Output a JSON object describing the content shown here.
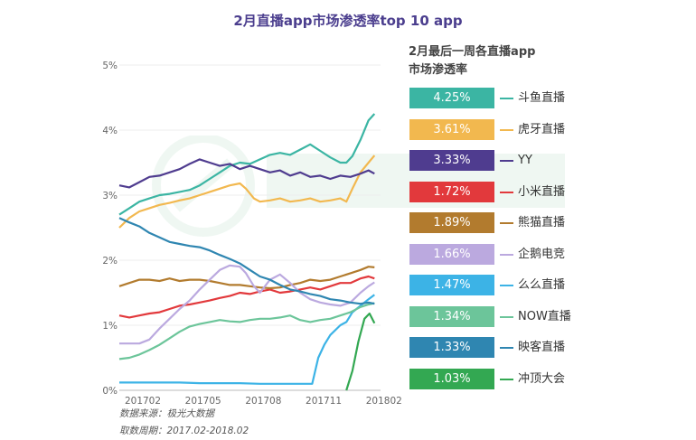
{
  "title": "2月直播app市场渗透率top 10 app",
  "legend_title": [
    "2月最后一周各直播app",
    "市场渗透率"
  ],
  "source": {
    "line1": "数据来源：极光大数据",
    "line2": "取数周期：2017.02-2018.02"
  },
  "chart_data": {
    "type": "line",
    "title": "2月直播app市场渗透率top 10 app",
    "xlabel": "",
    "ylabel": "",
    "ylim": [
      0,
      5
    ],
    "yticks": [
      "0%",
      "1%",
      "2%",
      "3%",
      "4%",
      "5%"
    ],
    "x_tick_labels": [
      "201702",
      "201705",
      "201708",
      "201711",
      "201802"
    ],
    "x_tick_positions": [
      0,
      3,
      6,
      9,
      12
    ],
    "x_range": [
      0,
      13
    ],
    "series": [
      {
        "name": "斗鱼直播",
        "value": "4.25%",
        "color": "#3bb5a3",
        "points": [
          [
            0,
            2.7
          ],
          [
            0.5,
            2.8
          ],
          [
            1,
            2.9
          ],
          [
            1.5,
            2.95
          ],
          [
            2,
            3.0
          ],
          [
            2.5,
            3.02
          ],
          [
            3,
            3.05
          ],
          [
            3.5,
            3.08
          ],
          [
            4,
            3.15
          ],
          [
            4.5,
            3.25
          ],
          [
            5,
            3.35
          ],
          [
            5.5,
            3.45
          ],
          [
            6,
            3.5
          ],
          [
            6.5,
            3.48
          ],
          [
            7,
            3.55
          ],
          [
            7.5,
            3.62
          ],
          [
            8,
            3.65
          ],
          [
            8.5,
            3.62
          ],
          [
            9,
            3.7
          ],
          [
            9.5,
            3.78
          ],
          [
            10,
            3.68
          ],
          [
            10.5,
            3.58
          ],
          [
            11,
            3.5
          ],
          [
            11.3,
            3.5
          ],
          [
            11.6,
            3.6
          ],
          [
            12,
            3.85
          ],
          [
            12.4,
            4.15
          ],
          [
            12.7,
            4.25
          ]
        ]
      },
      {
        "name": "虎牙直播",
        "value": "3.61%",
        "color": "#f2b84f",
        "points": [
          [
            0,
            2.5
          ],
          [
            0.5,
            2.65
          ],
          [
            1,
            2.75
          ],
          [
            1.5,
            2.8
          ],
          [
            2,
            2.85
          ],
          [
            2.5,
            2.88
          ],
          [
            3,
            2.92
          ],
          [
            3.5,
            2.95
          ],
          [
            4,
            3.0
          ],
          [
            4.5,
            3.05
          ],
          [
            5,
            3.1
          ],
          [
            5.5,
            3.15
          ],
          [
            6,
            3.18
          ],
          [
            6.3,
            3.1
          ],
          [
            6.7,
            2.95
          ],
          [
            7,
            2.9
          ],
          [
            7.5,
            2.92
          ],
          [
            8,
            2.95
          ],
          [
            8.5,
            2.9
          ],
          [
            9,
            2.92
          ],
          [
            9.5,
            2.95
          ],
          [
            10,
            2.9
          ],
          [
            10.5,
            2.92
          ],
          [
            11,
            2.95
          ],
          [
            11.3,
            2.9
          ],
          [
            11.6,
            3.1
          ],
          [
            12,
            3.35
          ],
          [
            12.4,
            3.5
          ],
          [
            12.7,
            3.61
          ]
        ]
      },
      {
        "name": "YY",
        "value": "3.33%",
        "color": "#4f3c8f",
        "points": [
          [
            0,
            3.15
          ],
          [
            0.5,
            3.12
          ],
          [
            1,
            3.2
          ],
          [
            1.5,
            3.28
          ],
          [
            2,
            3.3
          ],
          [
            2.5,
            3.35
          ],
          [
            3,
            3.4
          ],
          [
            3.5,
            3.48
          ],
          [
            4,
            3.55
          ],
          [
            4.5,
            3.5
          ],
          [
            5,
            3.45
          ],
          [
            5.5,
            3.48
          ],
          [
            6,
            3.4
          ],
          [
            6.5,
            3.45
          ],
          [
            7,
            3.4
          ],
          [
            7.5,
            3.35
          ],
          [
            8,
            3.38
          ],
          [
            8.5,
            3.3
          ],
          [
            9,
            3.35
          ],
          [
            9.5,
            3.28
          ],
          [
            10,
            3.3
          ],
          [
            10.5,
            3.25
          ],
          [
            11,
            3.3
          ],
          [
            11.5,
            3.28
          ],
          [
            12,
            3.33
          ],
          [
            12.4,
            3.38
          ],
          [
            12.7,
            3.33
          ]
        ]
      },
      {
        "name": "小米直播",
        "value": "1.72%",
        "color": "#e2393c",
        "points": [
          [
            0,
            1.15
          ],
          [
            0.5,
            1.12
          ],
          [
            1,
            1.15
          ],
          [
            1.5,
            1.18
          ],
          [
            2,
            1.2
          ],
          [
            2.5,
            1.25
          ],
          [
            3,
            1.3
          ],
          [
            3.5,
            1.32
          ],
          [
            4,
            1.35
          ],
          [
            4.5,
            1.38
          ],
          [
            5,
            1.42
          ],
          [
            5.5,
            1.45
          ],
          [
            6,
            1.5
          ],
          [
            6.5,
            1.48
          ],
          [
            7,
            1.52
          ],
          [
            7.5,
            1.55
          ],
          [
            8,
            1.5
          ],
          [
            8.5,
            1.52
          ],
          [
            9,
            1.55
          ],
          [
            9.5,
            1.58
          ],
          [
            10,
            1.55
          ],
          [
            10.5,
            1.6
          ],
          [
            11,
            1.65
          ],
          [
            11.5,
            1.65
          ],
          [
            12,
            1.72
          ],
          [
            12.4,
            1.75
          ],
          [
            12.7,
            1.72
          ]
        ]
      },
      {
        "name": "熊猫直播",
        "value": "1.89%",
        "color": "#b27b2e",
        "points": [
          [
            0,
            1.6
          ],
          [
            0.5,
            1.65
          ],
          [
            1,
            1.7
          ],
          [
            1.5,
            1.7
          ],
          [
            2,
            1.68
          ],
          [
            2.5,
            1.72
          ],
          [
            3,
            1.68
          ],
          [
            3.5,
            1.7
          ],
          [
            4,
            1.7
          ],
          [
            4.5,
            1.68
          ],
          [
            5,
            1.65
          ],
          [
            5.5,
            1.62
          ],
          [
            6,
            1.62
          ],
          [
            6.5,
            1.6
          ],
          [
            7,
            1.58
          ],
          [
            7.5,
            1.57
          ],
          [
            8,
            1.58
          ],
          [
            8.5,
            1.62
          ],
          [
            9,
            1.65
          ],
          [
            9.5,
            1.7
          ],
          [
            10,
            1.68
          ],
          [
            10.5,
            1.7
          ],
          [
            11,
            1.75
          ],
          [
            11.5,
            1.8
          ],
          [
            12,
            1.85
          ],
          [
            12.4,
            1.9
          ],
          [
            12.7,
            1.89
          ]
        ]
      },
      {
        "name": "企鹅电竞",
        "value": "1.66%",
        "color": "#bba9df",
        "points": [
          [
            0,
            0.72
          ],
          [
            0.5,
            0.72
          ],
          [
            1,
            0.72
          ],
          [
            1.5,
            0.78
          ],
          [
            2,
            0.95
          ],
          [
            2.5,
            1.1
          ],
          [
            3,
            1.25
          ],
          [
            3.5,
            1.38
          ],
          [
            4,
            1.55
          ],
          [
            4.5,
            1.7
          ],
          [
            5,
            1.85
          ],
          [
            5.5,
            1.92
          ],
          [
            6,
            1.9
          ],
          [
            6.3,
            1.8
          ],
          [
            6.7,
            1.6
          ],
          [
            7,
            1.5
          ],
          [
            7.5,
            1.7
          ],
          [
            8,
            1.78
          ],
          [
            8.5,
            1.65
          ],
          [
            9,
            1.5
          ],
          [
            9.5,
            1.4
          ],
          [
            10,
            1.35
          ],
          [
            10.5,
            1.32
          ],
          [
            11,
            1.3
          ],
          [
            11.5,
            1.35
          ],
          [
            12,
            1.5
          ],
          [
            12.4,
            1.6
          ],
          [
            12.7,
            1.66
          ]
        ]
      },
      {
        "name": "么么直播",
        "value": "1.47%",
        "color": "#3cb3e6",
        "points": [
          [
            0,
            0.12
          ],
          [
            1,
            0.12
          ],
          [
            2,
            0.12
          ],
          [
            3,
            0.12
          ],
          [
            4,
            0.11
          ],
          [
            5,
            0.11
          ],
          [
            6,
            0.11
          ],
          [
            7,
            0.1
          ],
          [
            8,
            0.1
          ],
          [
            9,
            0.1
          ],
          [
            9.6,
            0.1
          ],
          [
            9.9,
            0.5
          ],
          [
            10.2,
            0.7
          ],
          [
            10.5,
            0.85
          ],
          [
            11,
            1.0
          ],
          [
            11.3,
            1.05
          ],
          [
            11.6,
            1.2
          ],
          [
            12,
            1.3
          ],
          [
            12.4,
            1.4
          ],
          [
            12.7,
            1.47
          ]
        ]
      },
      {
        "name": "NOW直播",
        "value": "1.34%",
        "color": "#6cc59a",
        "points": [
          [
            0,
            0.48
          ],
          [
            0.5,
            0.5
          ],
          [
            1,
            0.55
          ],
          [
            1.5,
            0.62
          ],
          [
            2,
            0.7
          ],
          [
            2.5,
            0.8
          ],
          [
            3,
            0.9
          ],
          [
            3.5,
            0.98
          ],
          [
            4,
            1.02
          ],
          [
            4.5,
            1.05
          ],
          [
            5,
            1.08
          ],
          [
            5.5,
            1.06
          ],
          [
            6,
            1.05
          ],
          [
            6.5,
            1.08
          ],
          [
            7,
            1.1
          ],
          [
            7.5,
            1.1
          ],
          [
            8,
            1.12
          ],
          [
            8.5,
            1.15
          ],
          [
            9,
            1.08
          ],
          [
            9.5,
            1.05
          ],
          [
            10,
            1.08
          ],
          [
            10.5,
            1.1
          ],
          [
            11,
            1.15
          ],
          [
            11.5,
            1.2
          ],
          [
            12,
            1.28
          ],
          [
            12.4,
            1.32
          ],
          [
            12.7,
            1.34
          ]
        ]
      },
      {
        "name": "映客直播",
        "value": "1.33%",
        "color": "#2f86b1",
        "points": [
          [
            0,
            2.65
          ],
          [
            0.5,
            2.58
          ],
          [
            1,
            2.52
          ],
          [
            1.5,
            2.42
          ],
          [
            2,
            2.35
          ],
          [
            2.5,
            2.28
          ],
          [
            3,
            2.25
          ],
          [
            3.5,
            2.22
          ],
          [
            4,
            2.2
          ],
          [
            4.5,
            2.15
          ],
          [
            5,
            2.08
          ],
          [
            5.5,
            2.02
          ],
          [
            6,
            1.95
          ],
          [
            6.5,
            1.85
          ],
          [
            7,
            1.75
          ],
          [
            7.5,
            1.7
          ],
          [
            8,
            1.62
          ],
          [
            8.5,
            1.55
          ],
          [
            9,
            1.52
          ],
          [
            9.5,
            1.48
          ],
          [
            10,
            1.45
          ],
          [
            10.5,
            1.4
          ],
          [
            11,
            1.38
          ],
          [
            11.5,
            1.35
          ],
          [
            12,
            1.33
          ],
          [
            12.4,
            1.35
          ],
          [
            12.7,
            1.33
          ]
        ]
      },
      {
        "name": "冲顶大会",
        "value": "1.03%",
        "color": "#33a852",
        "points": [
          [
            11.3,
            0.0
          ],
          [
            11.6,
            0.3
          ],
          [
            11.9,
            0.75
          ],
          [
            12.2,
            1.1
          ],
          [
            12.45,
            1.18
          ],
          [
            12.7,
            1.03
          ]
        ]
      }
    ]
  }
}
